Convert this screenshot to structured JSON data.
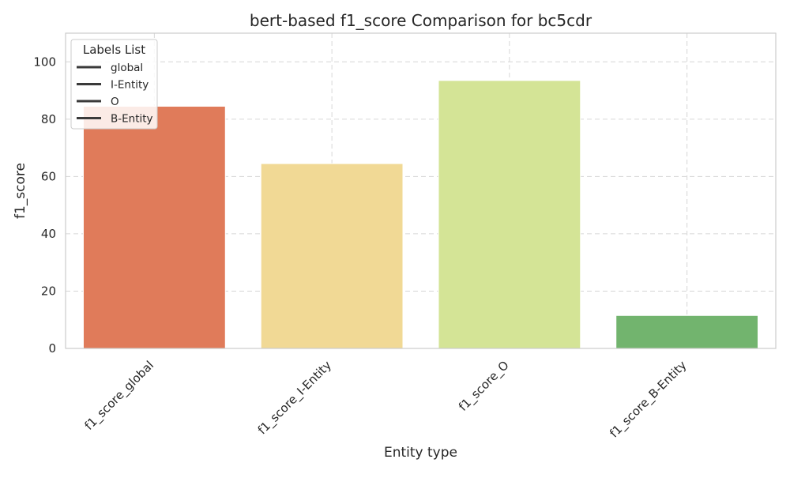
{
  "chart_data": {
    "type": "bar",
    "title": "bert-based f1_score Comparison for bc5cdr",
    "xlabel": "Entity type",
    "ylabel": "f1_score",
    "categories": [
      "f1_score_global",
      "f1_score_I-Entity",
      "f1_score_O",
      "f1_score_B-Entity"
    ],
    "values": [
      84.5,
      64.5,
      93.5,
      11.5
    ],
    "colors": [
      "#e07b5a",
      "#f1d995",
      "#d4e496",
      "#72b46e"
    ],
    "ylim": [
      0,
      110
    ],
    "yticks": [
      0,
      20,
      40,
      60,
      80,
      100
    ],
    "grid": true,
    "legend": {
      "title": "Labels List",
      "position": "top-left",
      "entries": [
        "global",
        "I-Entity",
        "O",
        "B-Entity"
      ]
    }
  }
}
